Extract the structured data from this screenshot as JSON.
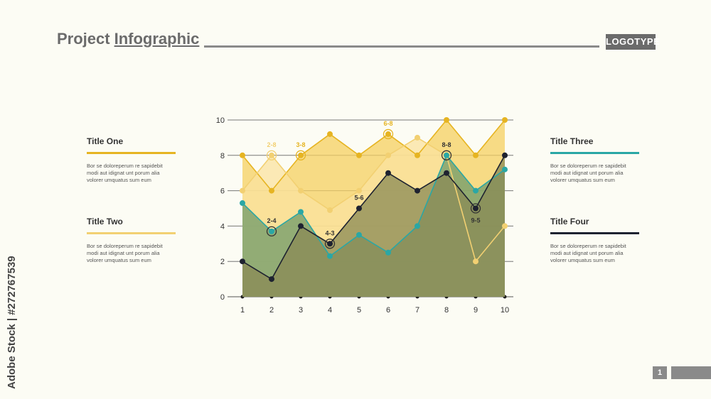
{
  "header": {
    "title_part1": "Project",
    "title_part2": "Infographic",
    "logo": "LOGOTYPE"
  },
  "sidebar_left": [
    {
      "title": "Title One",
      "text": "Bor se doloreperum re sapidebit modi aut idignat unt porum alia volorer umquatus sum eum",
      "color": "#e6b422"
    },
    {
      "title": "Title Two",
      "text": "Bor se doloreperum re sapidebit modi aut idignat unt porum alia volorer umquatus sum eum",
      "color": "#f2d072"
    }
  ],
  "sidebar_right": [
    {
      "title": "Title Three",
      "text": "Bor se doloreperum re sapidebit modi aut idignat unt porum alia volorer umquatus sum eum",
      "color": "#2aa7a5"
    },
    {
      "title": "Title Four",
      "text": "Bor se doloreperum re sapidebit modi aut idignat unt porum alia volorer umquatus sum eum",
      "color": "#1e2230"
    }
  ],
  "watermark": {
    "side_text": "Adobe Stock | #272767539"
  },
  "footer": {
    "page_number": "1"
  },
  "chart_data": {
    "type": "area",
    "x": [
      1,
      2,
      3,
      4,
      5,
      6,
      7,
      8,
      9,
      10
    ],
    "ylim": [
      0,
      10
    ],
    "yticks": [
      0,
      2,
      4,
      6,
      8,
      10
    ],
    "grid": true,
    "series": [
      {
        "values": [
          8,
          6,
          8,
          9.2,
          8,
          9.2,
          8,
          10,
          8,
          10
        ],
        "color": "#e6b422",
        "fill": "#f5d060"
      },
      {
        "values": [
          6,
          8,
          6,
          4.9,
          6,
          8,
          9,
          8,
          2,
          4
        ],
        "color": "#f2d072",
        "fill": "#fbe3a0"
      },
      {
        "values": [
          5.3,
          3.7,
          4.8,
          2.3,
          3.5,
          2.5,
          4,
          8,
          6,
          7.2
        ],
        "color": "#2aa7a5",
        "fill": "#6f9a6a"
      },
      {
        "values": [
          2,
          1,
          4,
          3,
          5,
          7,
          6,
          7,
          5,
          8
        ],
        "color": "#1e2230",
        "fill": "#8a8a55"
      }
    ],
    "annotations": [
      {
        "text": "2-8",
        "x": 2,
        "y": 8,
        "color": "#f2d072",
        "marker": true
      },
      {
        "text": "3-8",
        "x": 3,
        "y": 8,
        "color": "#e6b422",
        "marker": true
      },
      {
        "text": "6-8",
        "x": 6,
        "y": 9.2,
        "color": "#e6b422",
        "marker": true
      },
      {
        "text": "8-8",
        "x": 8,
        "y": 8,
        "color": "#333333",
        "marker": true
      },
      {
        "text": "2-4",
        "x": 2,
        "y": 3.7,
        "color": "#333333",
        "marker": true
      },
      {
        "text": "4-3",
        "x": 4,
        "y": 3,
        "color": "#333333",
        "marker": true
      },
      {
        "text": "5-6",
        "x": 5,
        "y": 5,
        "color": "#333333",
        "marker": false
      },
      {
        "text": "9-5",
        "x": 9,
        "y": 5,
        "color": "#333333",
        "marker": true
      }
    ]
  }
}
